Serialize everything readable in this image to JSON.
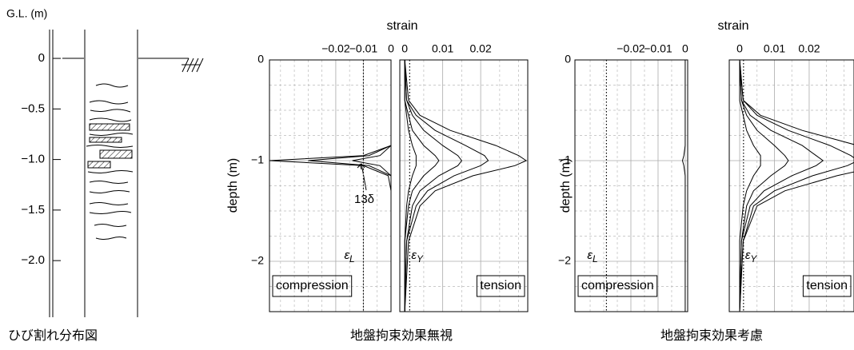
{
  "chart_data": [
    {
      "type": "log",
      "ylabel": "G.L. (m)",
      "caption": "ひび割れ分布図",
      "ylim": [
        -2.56,
        0.285
      ],
      "yticks": [
        0,
        {
          "value": -0.5,
          "label": "−0.5"
        },
        {
          "value": -1,
          "label": "−1.0"
        },
        {
          "value": -1.5,
          "label": "−1.5"
        },
        {
          "value": -2,
          "label": "−2.0"
        }
      ]
    },
    {
      "type": "profile",
      "title": "strain",
      "ylabel": "depth (m)",
      "caption": "地盤拘束効果無視",
      "ylim": [
        -2.5,
        0
      ],
      "yticks": [
        0,
        {
          "value": -1,
          "label": "−1"
        },
        {
          "value": -2,
          "label": "−2"
        }
      ],
      "minor_yticks": [
        -0.25,
        -0.5,
        -0.75,
        -1.25,
        -1.5,
        -1.75,
        -2.25
      ],
      "depth": [
        0,
        -0.4,
        -0.55,
        -0.7,
        -0.85,
        -0.95,
        -1.0,
        -1.05,
        -1.15,
        -1.3,
        -1.45,
        -1.8,
        -2.5
      ],
      "annotation": "13δ",
      "panels": [
        {
          "name": "compression",
          "xlim": [
            -0.044,
            0
          ],
          "xticks": [
            {
              "value": -0.02,
              "label": "−0.02"
            },
            {
              "value": -0.01,
              "label": "−0.01"
            },
            0
          ],
          "minor_xticks": [
            -0.04,
            -0.035,
            -0.03,
            -0.025,
            -0.015,
            -0.005
          ],
          "ref_line": {
            "symbol": "ε",
            "subscript": "L",
            "value": -0.01
          },
          "series": [
            {
              "color": "#000000",
              "values": [
                0,
                0,
                0,
                0,
                0,
                -0.004,
                -0.014,
                -0.004,
                0,
                0,
                0,
                0,
                0
              ]
            },
            {
              "color": "#000000",
              "values": [
                0,
                0,
                0,
                0,
                0,
                -0.008,
                -0.03,
                -0.008,
                0,
                0,
                0,
                0,
                0
              ]
            },
            {
              "color": "#000000",
              "values": [
                0,
                0,
                0,
                0,
                0,
                -0.01,
                -0.044,
                -0.01,
                -0.001,
                0,
                0,
                0,
                0
              ]
            }
          ]
        },
        {
          "name": "tension",
          "xlim": [
            -0.0013,
            0.0324
          ],
          "xticks": [
            0,
            0.01,
            0.02
          ],
          "minor_xticks": [
            0.005,
            0.015,
            0.025,
            0.03
          ],
          "ref_line": {
            "symbol": "ε",
            "subscript": "Y",
            "value": 0.0013
          },
          "series": [
            {
              "color": "#000000",
              "values": [
                0,
                0,
                0.0005,
                0.001,
                0.002,
                0.003,
                0.003,
                0.003,
                0.002,
                0.001,
                0.0005,
                0,
                0
              ]
            },
            {
              "color": "#000000",
              "values": [
                0,
                0,
                0.001,
                0.002,
                0.005,
                0.008,
                0.009,
                0.008,
                0.005,
                0.002,
                0.001,
                0,
                0
              ]
            },
            {
              "color": "#000000",
              "values": [
                0,
                0.0005,
                0.002,
                0.005,
                0.01,
                0.014,
                0.015,
                0.014,
                0.009,
                0.004,
                0.002,
                0.0005,
                0
              ]
            },
            {
              "color": "#000000",
              "values": [
                0,
                0.0005,
                0.003,
                0.008,
                0.016,
                0.021,
                0.022,
                0.02,
                0.013,
                0.006,
                0.003,
                0.0005,
                0
              ]
            },
            {
              "color": "#000000",
              "values": [
                0,
                0.001,
                0.004,
                0.012,
                0.024,
                0.03,
                0.032,
                0.029,
                0.018,
                0.008,
                0.004,
                0.001,
                0
              ]
            }
          ]
        }
      ]
    },
    {
      "type": "profile",
      "title": "strain",
      "ylabel": "depth (m)",
      "caption": "地盤拘束効果考慮",
      "ylim": [
        -2.5,
        0
      ],
      "yticks": [
        0,
        {
          "value": -1,
          "label": "−1"
        },
        {
          "value": -2,
          "label": "−2"
        }
      ],
      "minor_yticks": [
        -0.25,
        -0.5,
        -0.75,
        -1.25,
        -1.5,
        -1.75,
        -2.25
      ],
      "depth": [
        0,
        -0.4,
        -0.55,
        -0.7,
        -0.85,
        -0.95,
        -1.0,
        -1.05,
        -1.15,
        -1.3,
        -1.45,
        -1.8,
        -2.5
      ],
      "panels": [
        {
          "name": "compression",
          "xlim": [
            -0.0406,
            0.0009
          ],
          "xticks": [
            {
              "value": -0.02,
              "label": "−0.02"
            },
            {
              "value": -0.01,
              "label": "−0.01"
            },
            0
          ],
          "minor_xticks": [
            -0.035,
            -0.03,
            -0.025,
            -0.015,
            -0.005
          ],
          "ref_line": {
            "symbol": "ε",
            "subscript": "L",
            "value": -0.029
          },
          "series": [
            {
              "color": "#000000",
              "values": [
                0,
                0,
                0,
                0,
                0,
                -0.0005,
                -0.001,
                -0.0005,
                0,
                0,
                0,
                0,
                0
              ]
            }
          ]
        },
        {
          "name": "tension",
          "xlim": [
            -0.003,
            0.0329
          ],
          "xticks": [
            0,
            0.01,
            0.02
          ],
          "minor_xticks": [
            0.005,
            0.015,
            0.025,
            0.03
          ],
          "ref_line": {
            "symbol": "ε",
            "subscript": "Y",
            "value": 0.0011
          },
          "series": [
            {
              "color": "#000000",
              "values": [
                0,
                0,
                0.001,
                0.002,
                0.004,
                0.006,
                0.006,
                0.006,
                0.004,
                0.002,
                0.001,
                0,
                0
              ]
            },
            {
              "color": "#000000",
              "values": [
                0,
                0.0005,
                0.002,
                0.005,
                0.01,
                0.013,
                0.014,
                0.013,
                0.009,
                0.004,
                0.002,
                0.0005,
                0
              ]
            },
            {
              "color": "#000000",
              "values": [
                0,
                0.0005,
                0.003,
                0.009,
                0.018,
                0.022,
                0.024,
                0.022,
                0.015,
                0.007,
                0.003,
                0.0005,
                0
              ]
            },
            {
              "color": "#000000",
              "values": [
                0,
                0.001,
                0.005,
                0.014,
                0.026,
                0.032,
                0.034,
                0.031,
                0.021,
                0.01,
                0.004,
                0.001,
                0
              ]
            },
            {
              "color": "#000000",
              "values": [
                0,
                0.001,
                0.006,
                0.018,
                0.034,
                0.042,
                0.045,
                0.041,
                0.028,
                0.013,
                0.005,
                0.001,
                0
              ]
            }
          ]
        }
      ]
    }
  ]
}
